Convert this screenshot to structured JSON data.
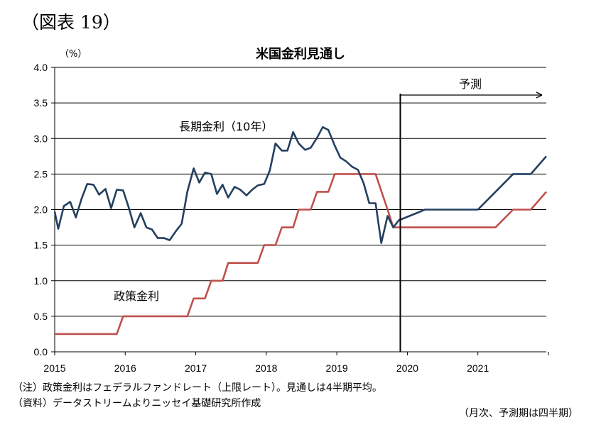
{
  "figure_label": "（図表 19）",
  "notes": {
    "note": "（注）政策金利はフェデラルファンドレート（上限レート）。見通しは4半期平均。",
    "source": "（資料）データストリームよりニッセイ基礎研究所作成",
    "frequency": "（月次、予測期は四半期）"
  },
  "chart_data": {
    "type": "line",
    "title": "米国金利見通し",
    "ylabel": "（%）",
    "xlabel": "",
    "ylim": [
      0.0,
      4.0
    ],
    "xlim": [
      2015.0,
      2021.97
    ],
    "y_ticks": [
      "0.0",
      "0.5",
      "1.0",
      "1.5",
      "2.0",
      "2.5",
      "3.0",
      "3.5",
      "4.0"
    ],
    "x_ticks": [
      "2015",
      "2016",
      "2017",
      "2018",
      "2019",
      "2020",
      "2021"
    ],
    "grid": true,
    "forecast_start": 2019.9,
    "forecast_label": "予測",
    "series": [
      {
        "name": "長期金利（10年）",
        "color": "#243f60",
        "points": [
          [
            2015.0,
            1.97
          ],
          [
            2015.05,
            1.73
          ],
          [
            2015.13,
            2.05
          ],
          [
            2015.22,
            2.11
          ],
          [
            2015.3,
            1.89
          ],
          [
            2015.38,
            2.15
          ],
          [
            2015.46,
            2.36
          ],
          [
            2015.55,
            2.35
          ],
          [
            2015.63,
            2.21
          ],
          [
            2015.72,
            2.29
          ],
          [
            2015.8,
            2.02
          ],
          [
            2015.88,
            2.28
          ],
          [
            2015.97,
            2.27
          ],
          [
            2016.05,
            2.03
          ],
          [
            2016.13,
            1.75
          ],
          [
            2016.22,
            1.95
          ],
          [
            2016.3,
            1.75
          ],
          [
            2016.38,
            1.72
          ],
          [
            2016.46,
            1.6
          ],
          [
            2016.55,
            1.6
          ],
          [
            2016.63,
            1.57
          ],
          [
            2016.72,
            1.7
          ],
          [
            2016.8,
            1.8
          ],
          [
            2016.88,
            2.25
          ],
          [
            2016.97,
            2.58
          ],
          [
            2017.05,
            2.38
          ],
          [
            2017.13,
            2.52
          ],
          [
            2017.22,
            2.5
          ],
          [
            2017.3,
            2.22
          ],
          [
            2017.38,
            2.35
          ],
          [
            2017.46,
            2.17
          ],
          [
            2017.55,
            2.32
          ],
          [
            2017.63,
            2.28
          ],
          [
            2017.72,
            2.2
          ],
          [
            2017.8,
            2.28
          ],
          [
            2017.88,
            2.34
          ],
          [
            2017.97,
            2.36
          ],
          [
            2018.05,
            2.55
          ],
          [
            2018.13,
            2.93
          ],
          [
            2018.22,
            2.83
          ],
          [
            2018.3,
            2.83
          ],
          [
            2018.38,
            3.09
          ],
          [
            2018.46,
            2.93
          ],
          [
            2018.55,
            2.84
          ],
          [
            2018.63,
            2.87
          ],
          [
            2018.72,
            3.01
          ],
          [
            2018.8,
            3.16
          ],
          [
            2018.88,
            3.12
          ],
          [
            2018.97,
            2.9
          ],
          [
            2019.05,
            2.73
          ],
          [
            2019.13,
            2.68
          ],
          [
            2019.22,
            2.6
          ],
          [
            2019.3,
            2.56
          ],
          [
            2019.38,
            2.37
          ],
          [
            2019.46,
            2.09
          ],
          [
            2019.55,
            2.09
          ],
          [
            2019.63,
            1.53
          ],
          [
            2019.72,
            1.91
          ],
          [
            2019.8,
            1.75
          ],
          [
            2019.88,
            1.85
          ],
          [
            2020.13,
            1.95
          ],
          [
            2020.25,
            2.0
          ],
          [
            2020.5,
            2.0
          ],
          [
            2020.75,
            2.0
          ],
          [
            2021.0,
            2.0
          ],
          [
            2021.25,
            2.25
          ],
          [
            2021.5,
            2.5
          ],
          [
            2021.75,
            2.5
          ],
          [
            2021.97,
            2.75
          ]
        ]
      },
      {
        "name": "政策金利",
        "color": "#c0504d",
        "points": [
          [
            2015.0,
            0.25
          ],
          [
            2015.88,
            0.25
          ],
          [
            2015.97,
            0.5
          ],
          [
            2016.88,
            0.5
          ],
          [
            2016.97,
            0.75
          ],
          [
            2017.13,
            0.75
          ],
          [
            2017.22,
            1.0
          ],
          [
            2017.38,
            1.0
          ],
          [
            2017.46,
            1.25
          ],
          [
            2017.88,
            1.25
          ],
          [
            2017.97,
            1.5
          ],
          [
            2018.13,
            1.5
          ],
          [
            2018.22,
            1.75
          ],
          [
            2018.38,
            1.75
          ],
          [
            2018.46,
            2.0
          ],
          [
            2018.63,
            2.0
          ],
          [
            2018.72,
            2.25
          ],
          [
            2018.88,
            2.25
          ],
          [
            2018.97,
            2.5
          ],
          [
            2019.55,
            2.5
          ],
          [
            2019.72,
            2.0
          ],
          [
            2019.8,
            1.75
          ],
          [
            2020.25,
            1.75
          ],
          [
            2020.5,
            1.75
          ],
          [
            2020.75,
            1.75
          ],
          [
            2021.0,
            1.75
          ],
          [
            2021.25,
            1.75
          ],
          [
            2021.5,
            2.0
          ],
          [
            2021.75,
            2.0
          ],
          [
            2021.97,
            2.25
          ]
        ]
      }
    ],
    "annotations": {
      "long_rate_label": "長期金利（10年）",
      "policy_rate_label": "政策金利"
    }
  }
}
